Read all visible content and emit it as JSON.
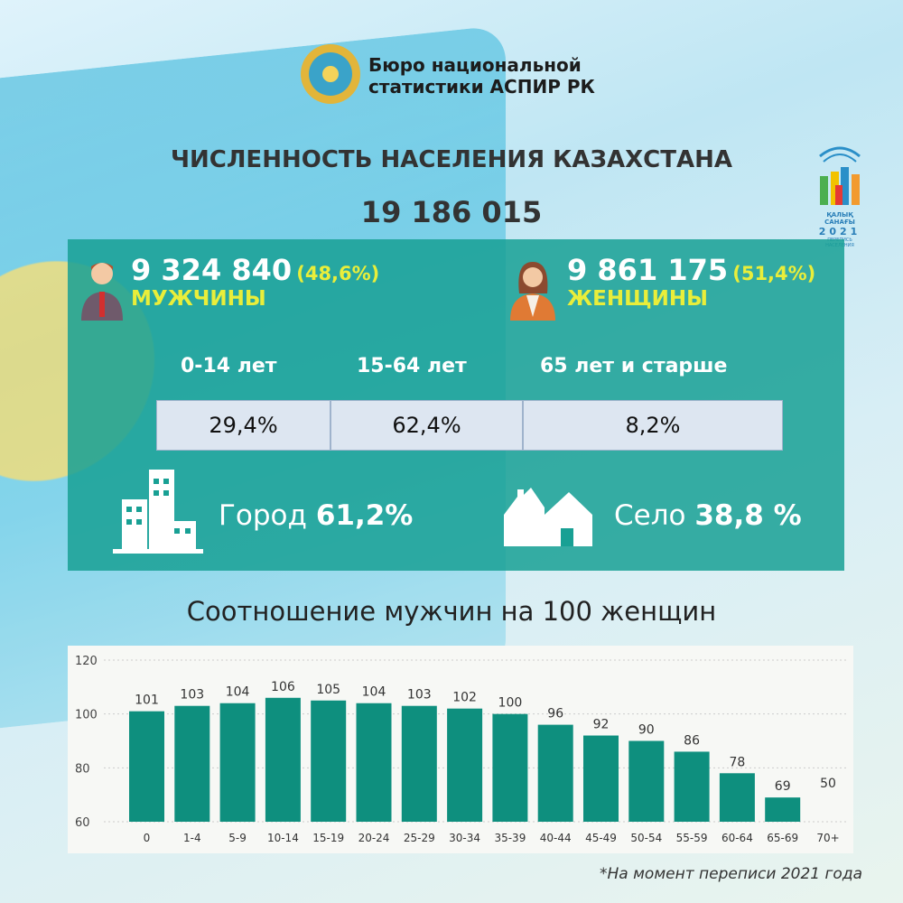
{
  "header": {
    "org_line1": "Бюро национальной",
    "org_line2": "статистики АСПИР РК",
    "title": "ЧИСЛЕННОСТЬ НАСЕЛЕНИЯ КАЗАХСТАНА",
    "total": "19 186 015"
  },
  "census_logo": {
    "line1": "ҚАЛЫҚ САНАҒЫ",
    "year": "2021",
    "line2": "ПЕРЕПИСЬ НАСЕЛЕНИЯ"
  },
  "men": {
    "count": "9 324 840",
    "pct": "(48,6%)",
    "label": "МУЖЧИНЫ",
    "icon": "man-icon"
  },
  "women": {
    "count": "9 861 175",
    "pct": "(51,4%)",
    "label": "ЖЕНЩИНЫ",
    "icon": "woman-icon"
  },
  "ages": [
    {
      "label": "0-14 лет",
      "value": "29,4%"
    },
    {
      "label": "15-64 лет",
      "value": "62,4%"
    },
    {
      "label": "65 лет и старше",
      "value": "8,2%"
    }
  ],
  "urban": {
    "label": "Город",
    "value": "61,2%",
    "icon": "city-buildings-icon"
  },
  "rural": {
    "label": "Село",
    "value": "38,8 %",
    "icon": "village-houses-icon"
  },
  "colors": {
    "panel": "#18a094",
    "bar": "#0e8f7e",
    "highlight": "#e9ee3a"
  },
  "chart_data": {
    "type": "bar",
    "title": "Соотношение мужчин на 100 женщин",
    "categories": [
      "0",
      "1-4",
      "5-9",
      "10-14",
      "15-19",
      "20-24",
      "25-29",
      "30-34",
      "35-39",
      "40-44",
      "45-49",
      "50-54",
      "55-59",
      "60-64",
      "65-69",
      "70+"
    ],
    "values": [
      101,
      103,
      104,
      106,
      105,
      104,
      103,
      102,
      100,
      96,
      92,
      90,
      86,
      78,
      69,
      50
    ],
    "ylim": [
      60,
      120
    ],
    "yticks": [
      60,
      80,
      100,
      120
    ],
    "grid": true,
    "xlabel": "",
    "ylabel": ""
  },
  "footnote": "*На момент переписи 2021 года"
}
